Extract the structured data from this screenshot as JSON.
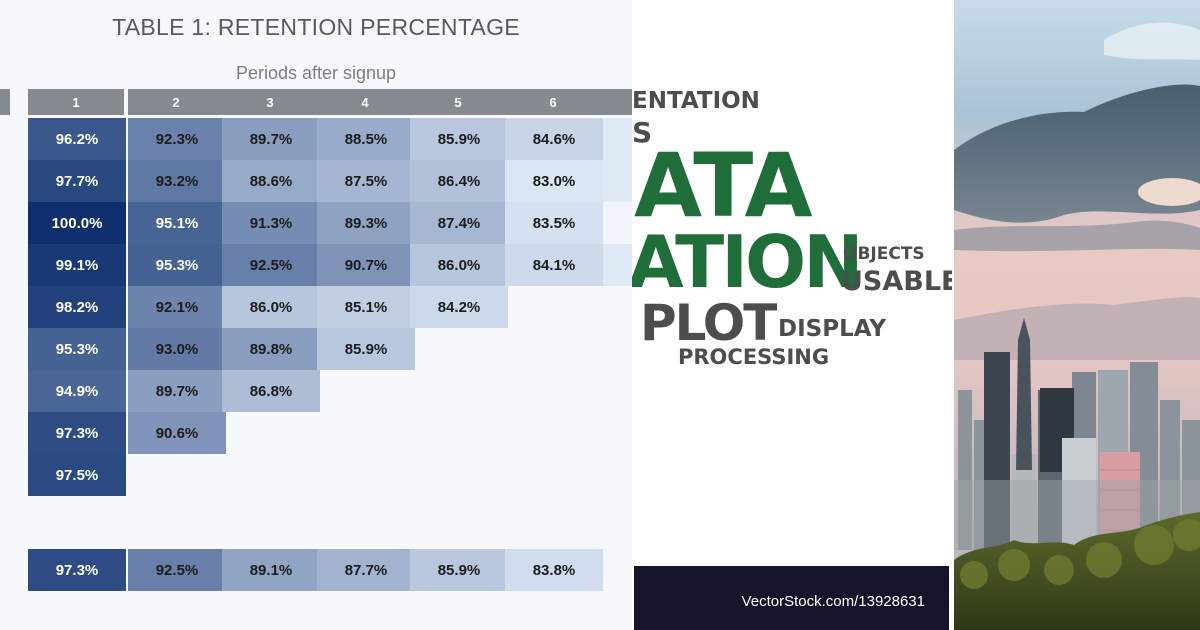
{
  "retention_table": {
    "title": "TABLE 1: RETENTION PERCENTAGE",
    "axis_label": "Periods after signup",
    "columns": [
      "1",
      "2",
      "3",
      "4",
      "5",
      "6"
    ],
    "rows": [
      [
        "96.2%",
        "92.3%",
        "89.7%",
        "88.5%",
        "85.9%",
        "84.6%"
      ],
      [
        "97.7%",
        "93.2%",
        "88.6%",
        "87.5%",
        "86.4%",
        "83.0%"
      ],
      [
        "100.0%",
        "95.1%",
        "91.3%",
        "89.3%",
        "87.4%",
        "83.5%"
      ],
      [
        "99.1%",
        "95.3%",
        "92.5%",
        "90.7%",
        "86.0%",
        "84.1%"
      ],
      [
        "98.2%",
        "92.1%",
        "86.0%",
        "85.1%",
        "84.2%"
      ],
      [
        "95.3%",
        "93.0%",
        "89.8%",
        "85.9%"
      ],
      [
        "94.9%",
        "89.7%",
        "86.8%"
      ],
      [
        "97.3%",
        "90.6%"
      ],
      [
        "97.5%"
      ]
    ],
    "average_row": [
      "97.3%",
      "92.5%",
      "89.1%",
      "87.7%",
      "85.9%",
      "83.8%"
    ]
  },
  "word_cloud": {
    "words": {
      "entation": "ENTATION",
      "s": "S",
      "ata": "ATA",
      "ation": "ATION",
      "objects": "OBJECTS",
      "usable": "USABLE",
      "plot": "PLOT",
      "display": "DISPLAY",
      "processing": "PROCESSING"
    },
    "gray_color": "#4d4d4d",
    "green_color": "#1f6e3a"
  },
  "watermark": "VectorStock.com/13928631"
}
